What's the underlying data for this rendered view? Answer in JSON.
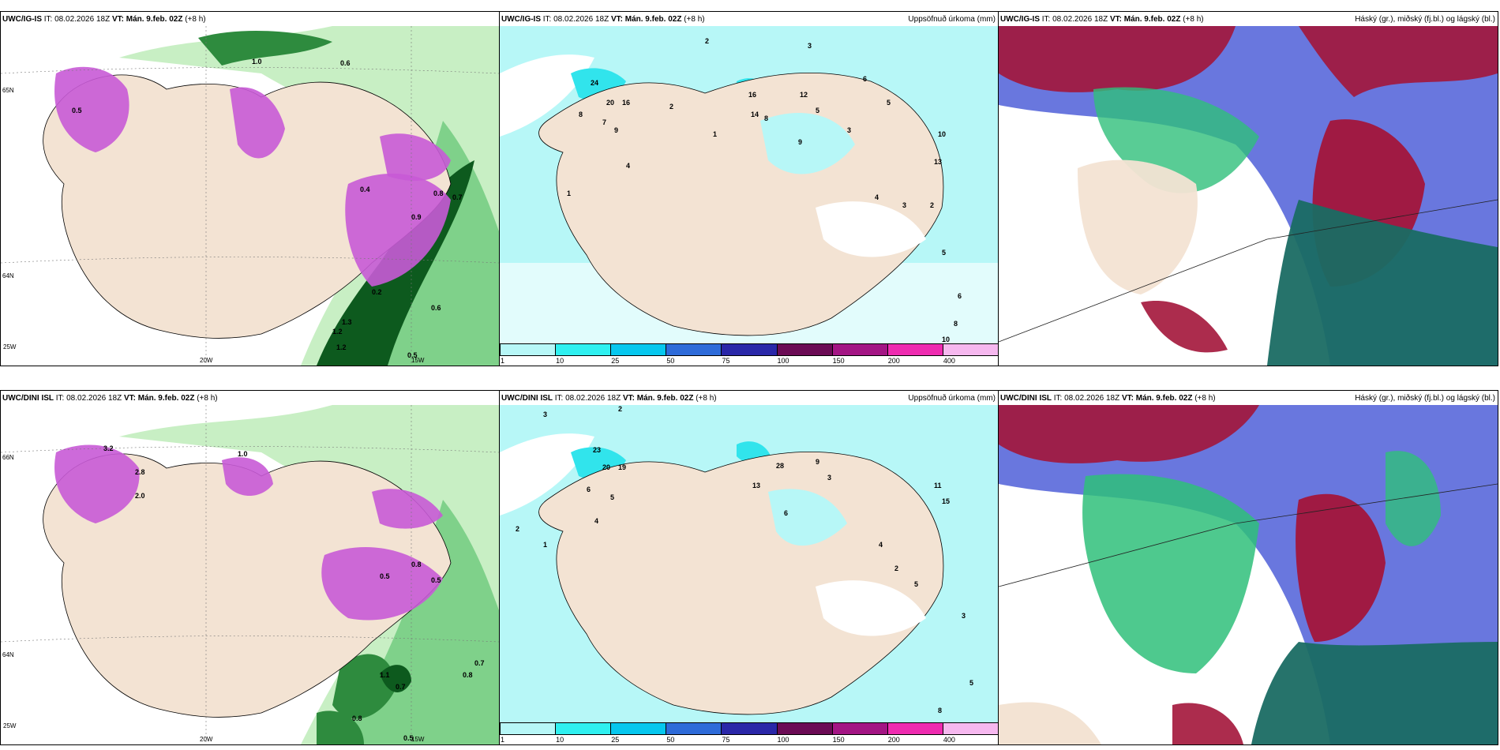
{
  "colors": {
    "land": "#f3e3d3",
    "pale_green": "#c8efc4",
    "mid_green": "#7fd18a",
    "dark_green": "#2e8b3e",
    "deep_green": "#0d5a1e",
    "magenta": "#c85ad6",
    "pale_cyan": "#b7f7f7",
    "cyan": "#31e4ec",
    "red": "#a3153a",
    "blue": "#4f5fd8",
    "teal": "#1a6b63"
  },
  "legend_bins": [
    {
      "tick": "1",
      "color": "#b7f7f7"
    },
    {
      "tick": "10",
      "color": "#2ff0f0"
    },
    {
      "tick": "25",
      "color": "#06c7ee"
    },
    {
      "tick": "50",
      "color": "#2e6bd9"
    },
    {
      "tick": "75",
      "color": "#2a27a8"
    },
    {
      "tick": "100",
      "color": "#6b0b55"
    },
    {
      "tick": "150",
      "color": "#a31584"
    },
    {
      "tick": "200",
      "color": "#ee2bb0"
    },
    {
      "tick": "400",
      "color": "#f6b8ef"
    }
  ],
  "panels": {
    "p1": {
      "model": "UWC/IG-IS",
      "it_label": "IT:",
      "it_value": "08.02.2026 18Z",
      "vt_label": "VT: Mán. 9.feb. 02Z",
      "lead": "(+8 h)",
      "right": "",
      "axes": {
        "lat_top": "65N",
        "lat_mid": "64N",
        "lon_left": "25W",
        "lon_mid": "20W",
        "lon_right": "15W"
      },
      "labels": [
        "1.0",
        "0.6",
        "0.8",
        "0.4",
        "0.7",
        "1.2",
        "0.9",
        "0.5",
        "0.5",
        "0.6",
        "1.2",
        "1.3",
        "0.2"
      ]
    },
    "p2": {
      "model": "UWC/IG-IS",
      "it_label": "IT:",
      "it_value": "08.02.2026 18Z",
      "vt_label": "VT: Mán. 9.feb. 02Z",
      "lead": "(+8 h)",
      "right": "Uppsöfnuð úrkoma (mm)",
      "labels": [
        "2",
        "3",
        "24",
        "20",
        "16",
        "8",
        "7",
        "9",
        "4",
        "1",
        "16",
        "14",
        "8",
        "12",
        "5",
        "2",
        "3",
        "9",
        "6",
        "5",
        "10",
        "13",
        "4",
        "3",
        "2",
        "5",
        "6",
        "8",
        "10",
        "1"
      ]
    },
    "p3": {
      "model": "UWC/IG-IS",
      "it_label": "IT:",
      "it_value": "08.02.2026 18Z",
      "vt_label": "VT: Mán. 9.feb. 02Z",
      "lead": "(+8 h)",
      "right": "Háský (gr.), miðský (fj.bl.) og lágský (bl.)"
    },
    "p4": {
      "model": "UWC/DINI ISL",
      "it_label": "IT:",
      "it_value": "08.02.2026 18Z",
      "vt_label": "VT: Mán. 9.feb. 02Z",
      "lead": "(+8 h)",
      "right": "",
      "axes": {
        "lat_top": "66N",
        "lat_mid": "64N",
        "lon_left": "25W",
        "lon_mid": "20W",
        "lon_right": "15W"
      },
      "labels": [
        "3.2",
        "2.8",
        "2.0",
        "1.0",
        "0.5",
        "0.8",
        "0.5",
        "0.7",
        "0.8",
        "1.1",
        "0.7",
        "0.8",
        "0.5"
      ]
    },
    "p5": {
      "model": "UWC/DINI ISL",
      "it_label": "IT:",
      "it_value": "08.02.2026 18Z",
      "vt_label": "VT: Mán. 9.feb. 02Z",
      "lead": "(+8 h)",
      "right": "Uppsöfnuð úrkoma (mm)",
      "labels": [
        "3",
        "2",
        "23",
        "20",
        "19",
        "6",
        "5",
        "4",
        "2",
        "1",
        "13",
        "28",
        "9",
        "3",
        "6",
        "11",
        "15",
        "4",
        "2",
        "5",
        "3",
        "8",
        "5"
      ]
    },
    "p6": {
      "model": "UWC/DINI ISL",
      "it_label": "IT:",
      "it_value": "08.02.2026 18Z",
      "vt_label": "VT: Mán. 9.feb. 02Z",
      "lead": "(+8 h)",
      "right": "Háský (gr.), miðský (fj.bl.) og lágský (bl.)"
    }
  }
}
